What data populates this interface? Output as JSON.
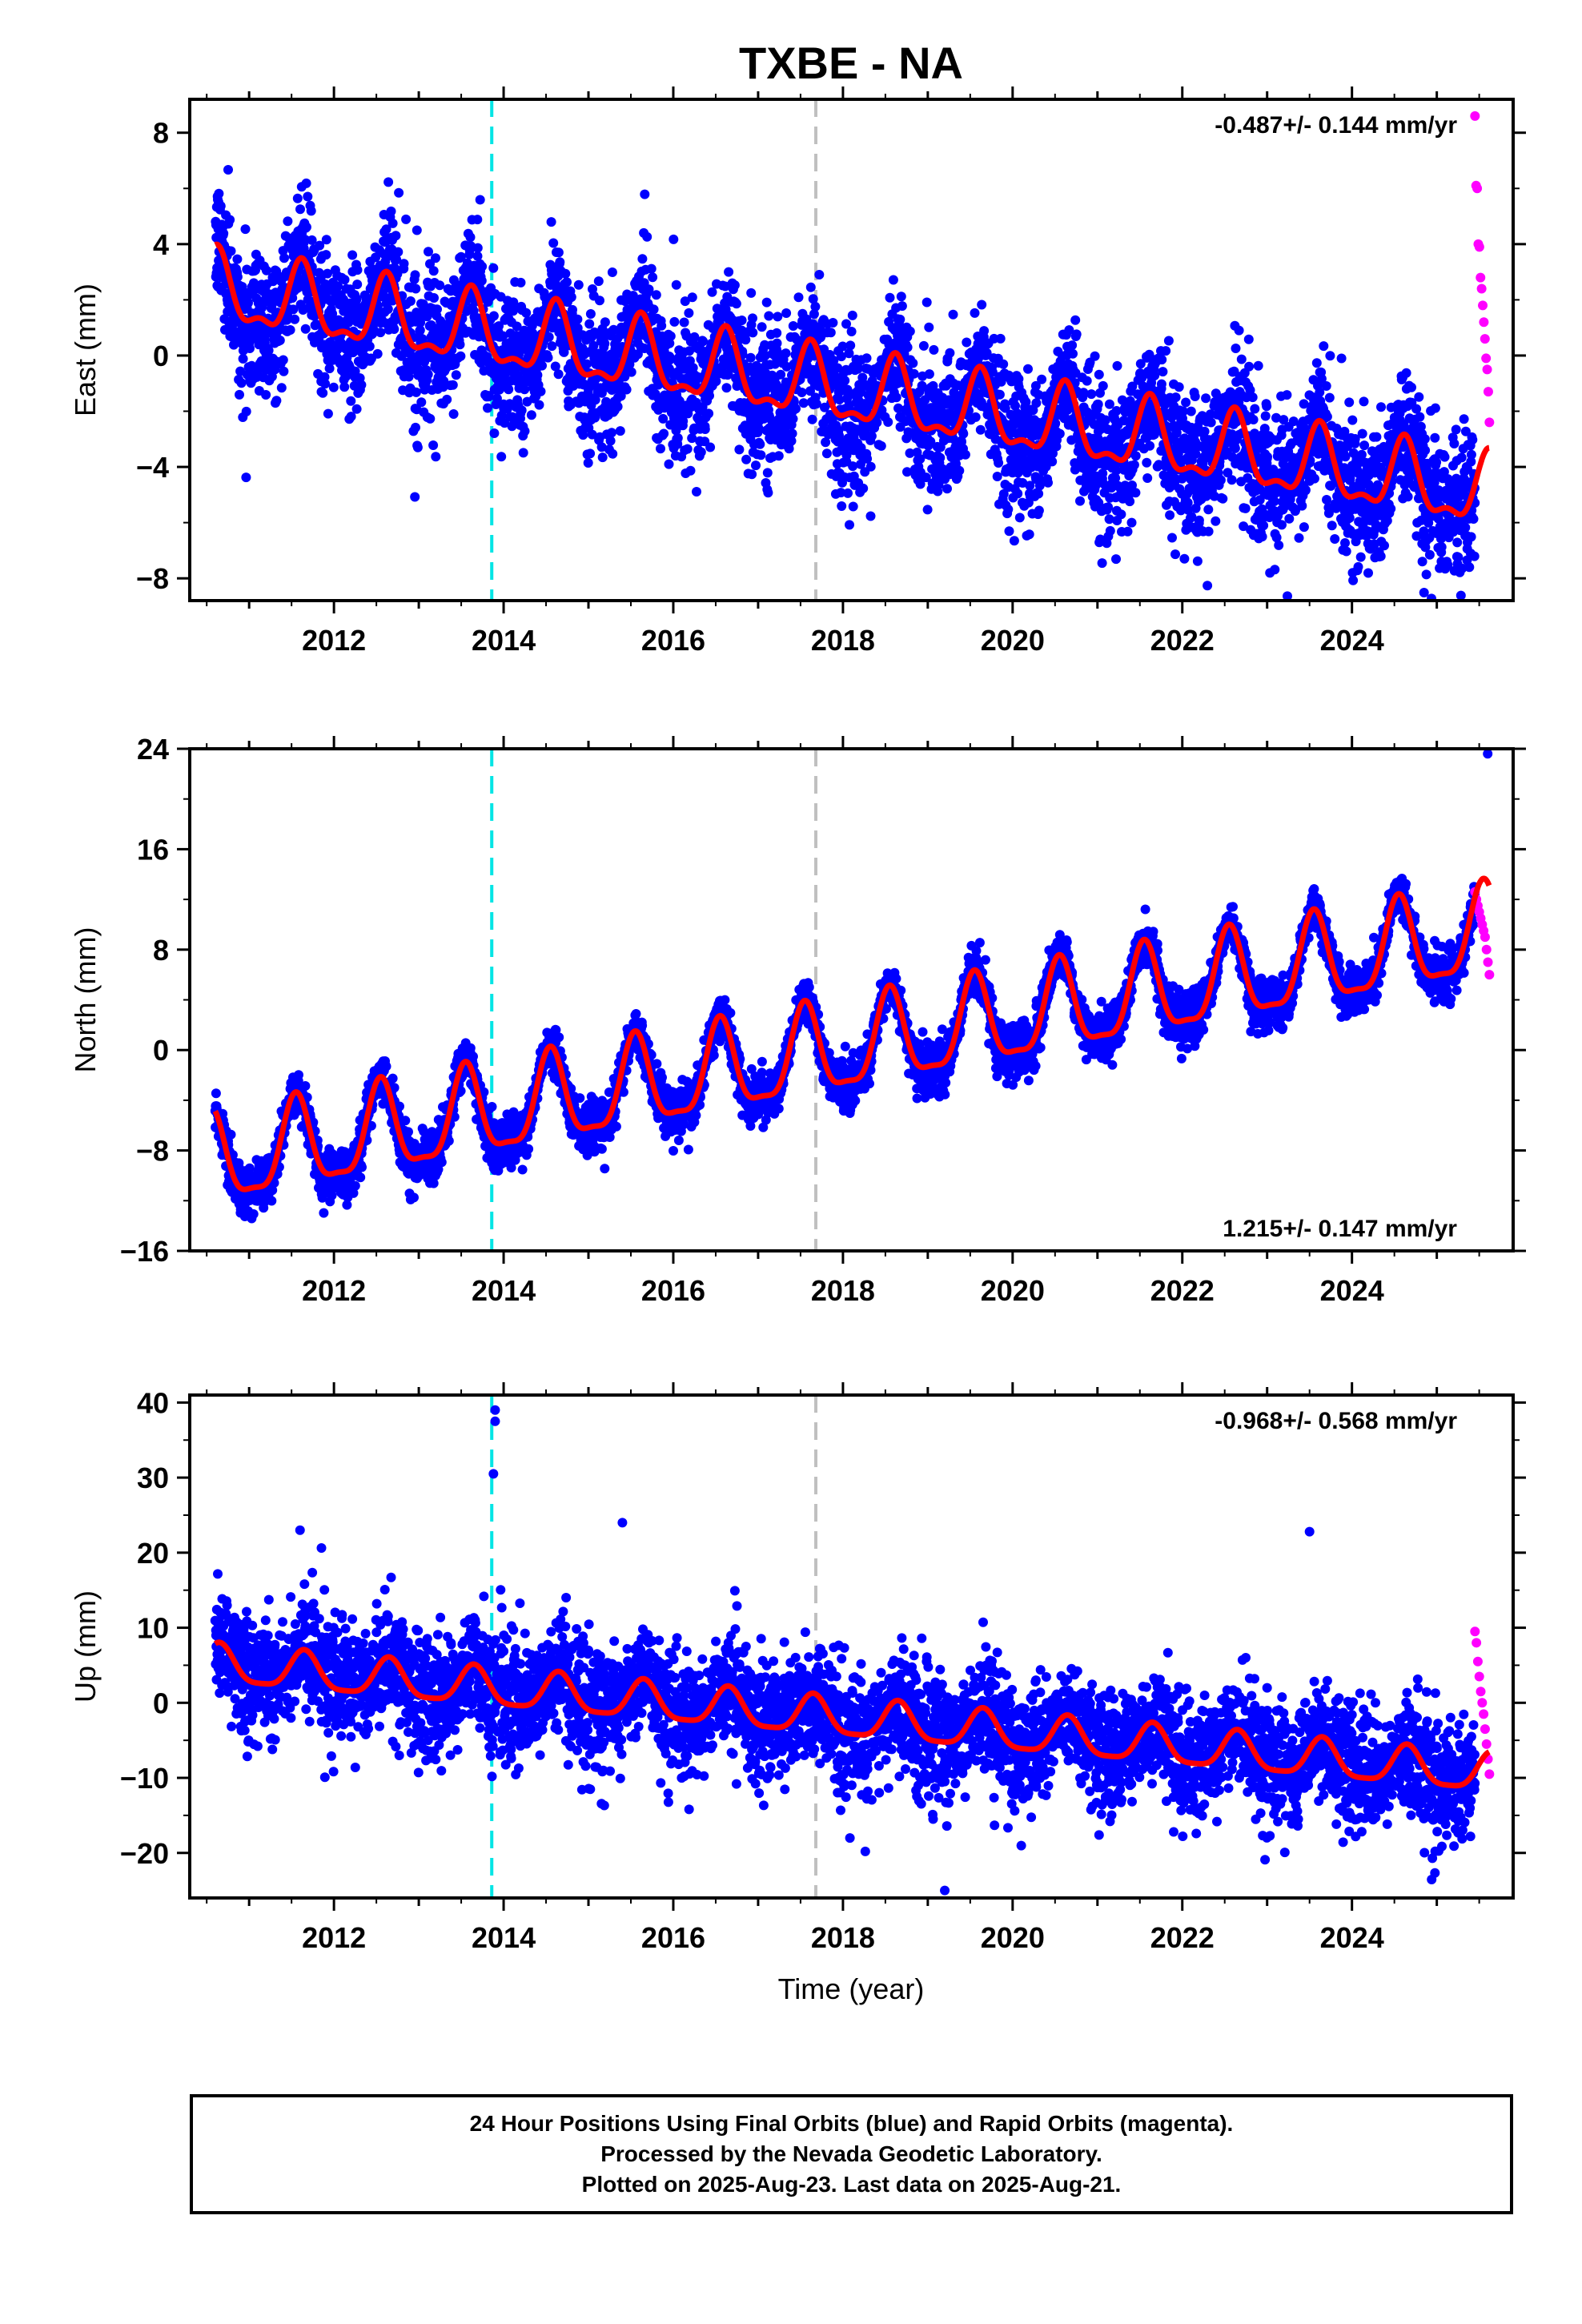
{
  "title": "TXBE - NA",
  "xlabel": "Time (year)",
  "footer": {
    "line1": "24 Hour Positions Using Final Orbits (blue) and Rapid Orbits (magenta).",
    "line2": "Processed by the Nevada Geodetic Laboratory.",
    "line3": "Plotted on 2025-Aug-23. Last data on 2025-Aug-21."
  },
  "colors": {
    "final_orbits": "#0000ff",
    "rapid_orbits": "#ff00ff",
    "model_fit": "#ff0000",
    "event_line_1": "#00e5e5",
    "event_line_2": "#c0c0c0"
  },
  "chart_data": [
    {
      "type": "scatter",
      "ylabel": "East (mm)",
      "rate_label": "-0.487+/- 0.144 mm/yr",
      "rate_position": "top-right",
      "xlim": [
        2010.3,
        2025.9
      ],
      "ylim": [
        -8.8,
        9.2
      ],
      "x_ticks": [
        2012,
        2014,
        2016,
        2018,
        2020,
        2022,
        2024
      ],
      "y_ticks": [
        -8,
        -4,
        0,
        4,
        8
      ],
      "y_tick_labels": [
        "−8",
        "−4",
        "0",
        "4",
        "8"
      ],
      "grid": false,
      "vertical_lines": [
        {
          "x": 2013.86,
          "color": "cyan",
          "style": "dashed"
        },
        {
          "x": 2017.68,
          "color": "gray",
          "style": "dashed"
        }
      ],
      "series": [
        {
          "name": "Final Orbits",
          "color": "blue",
          "x_range": [
            2010.6,
            2025.45
          ],
          "trend": {
            "rate": -0.487,
            "value_at_2010_6": 2.3
          },
          "seasonal": {
            "annual_amplitude": 1.2,
            "semiannual_amplitude": 0.5,
            "peak_phase_year_fraction": 0.62
          },
          "scatter_sd": 1.4
        },
        {
          "name": "Rapid Orbits",
          "color": "magenta",
          "x_range": [
            2025.45,
            2025.62
          ],
          "values_sample": [
            8.6,
            6.1,
            6.0,
            4.0,
            3.9,
            2.8,
            2.4,
            1.8,
            1.2,
            0.6,
            -0.1,
            -0.5,
            -1.3,
            -2.4
          ]
        },
        {
          "name": "Model fit",
          "color": "red",
          "style": "line"
        }
      ]
    },
    {
      "type": "scatter",
      "ylabel": "North (mm)",
      "rate_label": "1.215+/- 0.147 mm/yr",
      "rate_position": "bottom-right",
      "xlim": [
        2010.3,
        2025.9
      ],
      "ylim": [
        -16,
        24
      ],
      "x_ticks": [
        2012,
        2014,
        2016,
        2018,
        2020,
        2022,
        2024
      ],
      "y_ticks": [
        -16,
        -8,
        0,
        8,
        16,
        24
      ],
      "y_tick_labels": [
        "−16",
        "−8",
        "0",
        "8",
        "16",
        "24"
      ],
      "grid": false,
      "vertical_lines": [
        {
          "x": 2013.86,
          "color": "cyan",
          "style": "dashed"
        },
        {
          "x": 2017.68,
          "color": "gray",
          "style": "dashed"
        }
      ],
      "series": [
        {
          "name": "Final Orbits",
          "color": "blue",
          "x_range": [
            2010.6,
            2025.45
          ],
          "trend": {
            "rate": 1.215,
            "value_at_2010_6": -9.0
          },
          "seasonal": {
            "annual_amplitude": 3.5,
            "semiannual_amplitude": 1.0,
            "peak_phase_year_fraction": 0.55
          },
          "scatter_sd": 1.1,
          "outlier": {
            "x": 2025.6,
            "y": 23.6
          }
        },
        {
          "name": "Rapid Orbits",
          "color": "magenta",
          "x_range": [
            2025.45,
            2025.62
          ],
          "values_sample": [
            12.6,
            12.0,
            11.5,
            11.0,
            10.5,
            10.0,
            9.5,
            9.0,
            8.0,
            7.0,
            6.0
          ]
        },
        {
          "name": "Model fit",
          "color": "red",
          "style": "line"
        }
      ]
    },
    {
      "type": "scatter",
      "ylabel": "Up (mm)",
      "rate_label": "-0.968+/- 0.568 mm/yr",
      "rate_position": "top-right",
      "xlim": [
        2010.3,
        2025.9
      ],
      "ylim": [
        -26,
        41
      ],
      "x_ticks": [
        2012,
        2014,
        2016,
        2018,
        2020,
        2022,
        2024
      ],
      "y_ticks": [
        -20,
        -10,
        0,
        10,
        20,
        30,
        40
      ],
      "y_tick_labels": [
        "−20",
        "−10",
        "0",
        "10",
        "20",
        "30",
        "40"
      ],
      "grid": false,
      "vertical_lines": [
        {
          "x": 2013.86,
          "color": "cyan",
          "style": "dashed"
        },
        {
          "x": 2017.68,
          "color": "gray",
          "style": "dashed"
        }
      ],
      "series": [
        {
          "name": "Final Orbits",
          "color": "blue",
          "x_range": [
            2010.6,
            2025.45
          ],
          "trend": {
            "rate": -0.968,
            "value_at_2010_6": 5.0
          },
          "seasonal": {
            "annual_amplitude": 2.5,
            "semiannual_amplitude": 0.6,
            "peak_phase_year_fraction": 0.65
          },
          "scatter_sd": 4.5,
          "outliers": [
            {
              "x": 2013.9,
              "y": 39.0
            },
            {
              "x": 2013.9,
              "y": 37.5
            },
            {
              "x": 2013.88,
              "y": 30.5
            },
            {
              "x": 2011.6,
              "y": 23.0
            },
            {
              "x": 2015.4,
              "y": 24.0
            },
            {
              "x": 2023.5,
              "y": 22.8
            },
            {
              "x": 2019.2,
              "y": -25.0
            }
          ]
        },
        {
          "name": "Rapid Orbits",
          "color": "magenta",
          "x_range": [
            2025.45,
            2025.62
          ],
          "values_sample": [
            9.5,
            8.0,
            5.5,
            3.5,
            1.5,
            0.0,
            -1.5,
            -3.5,
            -5.5,
            -7.5,
            -9.5
          ]
        },
        {
          "name": "Model fit",
          "color": "red",
          "style": "line"
        }
      ]
    }
  ]
}
